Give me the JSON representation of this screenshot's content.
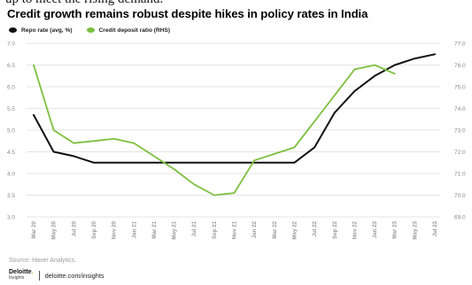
{
  "chart_data": {
    "type": "line",
    "title": "Credit growth remains robust despite hikes in policy rates in India",
    "x": [
      "Mar 20",
      "May 20",
      "Jul 20",
      "Sep 20",
      "Nov 20",
      "Jan 21",
      "Mar 21",
      "May 21",
      "Jul 21",
      "Sep 21",
      "Nov 21",
      "Jan 22",
      "Mar 22",
      "May 22",
      "Jul 22",
      "Sep 22",
      "Nov 22",
      "Jan 23",
      "Mar 23",
      "May 23",
      "Jul 23"
    ],
    "series": [
      {
        "name": "Repo rate (avg, %)",
        "axis": "left",
        "color": "#111111",
        "values": [
          5.35,
          4.5,
          4.4,
          4.25,
          4.25,
          4.25,
          4.25,
          4.25,
          4.25,
          4.25,
          4.25,
          4.25,
          4.25,
          4.25,
          4.6,
          5.4,
          5.9,
          6.25,
          6.5,
          6.65,
          6.75
        ]
      },
      {
        "name": "Credit deposit ratio (RHS)",
        "axis": "right",
        "color": "#7dbf3f",
        "values": [
          76.0,
          73.0,
          72.4,
          72.5,
          72.6,
          72.4,
          71.8,
          71.2,
          70.5,
          70.0,
          70.1,
          71.6,
          71.9,
          72.2,
          73.4,
          74.6,
          75.8,
          76.0,
          75.6,
          null,
          null
        ]
      }
    ],
    "ylim": [
      3.0,
      7.0
    ],
    "y_ticks": [
      "3.0",
      "3.5",
      "4.0",
      "4.5",
      "5.0",
      "5.5",
      "6.0",
      "6.5",
      "7.0"
    ],
    "y2lim": [
      69.0,
      77.0
    ],
    "y2_ticks": [
      "69.0",
      "70.0",
      "71.0",
      "72.0",
      "73.0",
      "74.0",
      "75.0",
      "76.0",
      "77.0"
    ],
    "grid": true,
    "legend": "top-left"
  },
  "cropped_text": "up to meet the rising demand.",
  "source": "Source: Haver Analytics.",
  "footer": {
    "brand": "Deloitte",
    "brand_dot": ".",
    "brand_sub": "Insights",
    "url": "deloitte.com/insights"
  },
  "colors": {
    "repo": "#111111",
    "credit": "#7dbf3f",
    "grid": "#dcdcdc",
    "tick_text": "#8c8c8c"
  }
}
